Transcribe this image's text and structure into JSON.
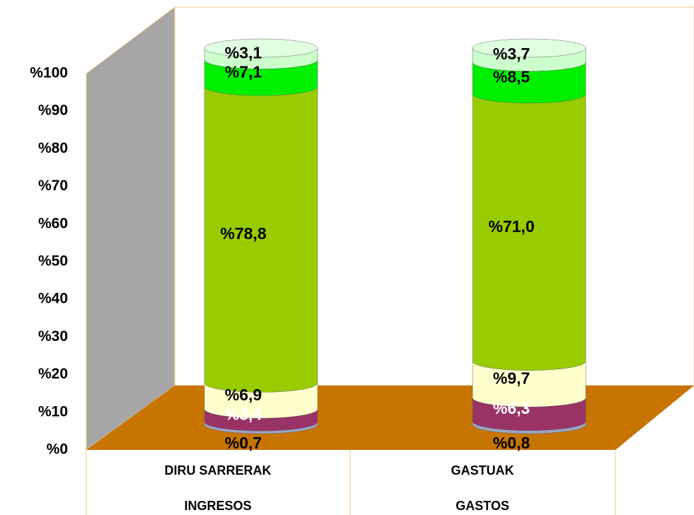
{
  "chart_data": {
    "type": "stacked_cylinder",
    "categories": [
      [
        "DIRU SARRERAK",
        "INGRESOS"
      ],
      [
        "GASTUAK",
        "GASTOS"
      ]
    ],
    "series": [
      {
        "color": "#9aa6c8",
        "label_color": "#000000",
        "values": [
          0.7,
          0.8
        ],
        "value_labels": [
          "%0,7",
          "%0,8"
        ]
      },
      {
        "color": "#993366",
        "label_color": "#ffffff",
        "values": [
          3.4,
          6.3
        ],
        "value_labels": [
          "%3,4",
          "%6,3"
        ]
      },
      {
        "color": "#ffffcc",
        "label_color": "#000000",
        "values": [
          6.9,
          9.7
        ],
        "value_labels": [
          "%6,9",
          "%9,7"
        ]
      },
      {
        "color": "#99cc00",
        "label_color": "#000000",
        "values": [
          78.8,
          71.0
        ],
        "value_labels": [
          "%78,8",
          "%71,0"
        ]
      },
      {
        "color": "#00ee00",
        "label_color": "#000000",
        "values": [
          7.1,
          8.5
        ],
        "value_labels": [
          "%7,1",
          "%8,5"
        ]
      },
      {
        "color": "#ccffcc",
        "label_color": "#000000",
        "values": [
          3.1,
          3.7
        ],
        "value_labels": [
          "%3,1",
          "%3,7"
        ]
      }
    ],
    "ylim": [
      0,
      100
    ],
    "yticks": [
      {
        "value": 0,
        "label": "%0"
      },
      {
        "value": 10,
        "label": "%10"
      },
      {
        "value": 20,
        "label": "%20"
      },
      {
        "value": 30,
        "label": "%30"
      },
      {
        "value": 40,
        "label": "%40"
      },
      {
        "value": 50,
        "label": "%50"
      },
      {
        "value": 60,
        "label": "%60"
      },
      {
        "value": 70,
        "label": "%70"
      },
      {
        "value": 80,
        "label": "%80"
      },
      {
        "value": 90,
        "label": "%90"
      },
      {
        "value": 100,
        "label": "%100"
      }
    ]
  }
}
